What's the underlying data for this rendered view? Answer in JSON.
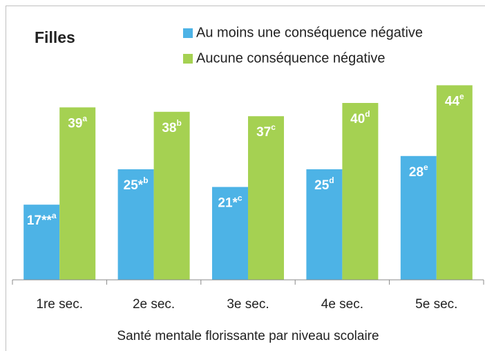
{
  "chart_data": {
    "type": "bar",
    "title": "Filles",
    "x_label": "Santé mentale florissante par niveau scolaire",
    "categories": [
      "1re sec.",
      "2e sec.",
      "3e sec.",
      "4e sec.",
      "5e sec."
    ],
    "series": [
      {
        "name": "Au moins une conséquence négative",
        "color": "#4db3e6",
        "values": [
          17,
          25,
          21,
          25,
          28
        ],
        "value_labels": [
          "17**",
          "25*",
          "21*",
          "25",
          "28"
        ],
        "notes": [
          "a",
          "b",
          "c",
          "d",
          "e"
        ]
      },
      {
        "name": "Aucune conséquence négative",
        "color": "#a5d152",
        "values": [
          39,
          38,
          37,
          40,
          44
        ],
        "value_labels": [
          "39",
          "38",
          "37",
          "40",
          "44"
        ],
        "notes": [
          "a",
          "b",
          "c",
          "d",
          "e"
        ]
      }
    ],
    "ylim": [
      0,
      50
    ]
  }
}
